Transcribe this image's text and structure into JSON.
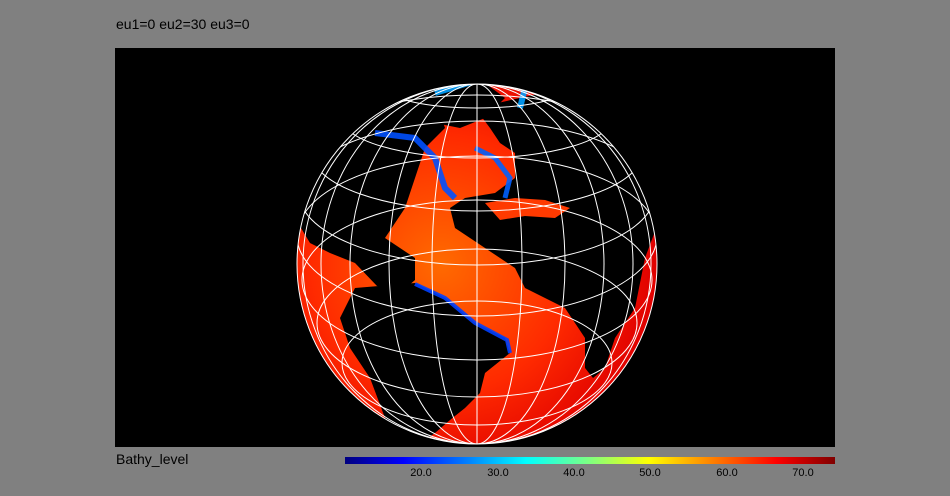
{
  "title": "eu1=0 eu2=30 eu3=0",
  "variable_label": "Bathy_level",
  "colorbar": {
    "ticks": [
      "20.0",
      "30.0",
      "40.0",
      "50.0",
      "60.0",
      "70.0"
    ],
    "colors": [
      "#000080",
      "#0000ff",
      "#0080ff",
      "#00ffff",
      "#80ff80",
      "#ffff00",
      "#ff8000",
      "#ff0000",
      "#800000"
    ]
  },
  "map": {
    "projection": "orthographic globe",
    "background": "#000000",
    "graticule_color": "#ffffff",
    "ocean_color": "#ff2000",
    "land_color": "#000000",
    "shelf_color": "#0040ff"
  }
}
